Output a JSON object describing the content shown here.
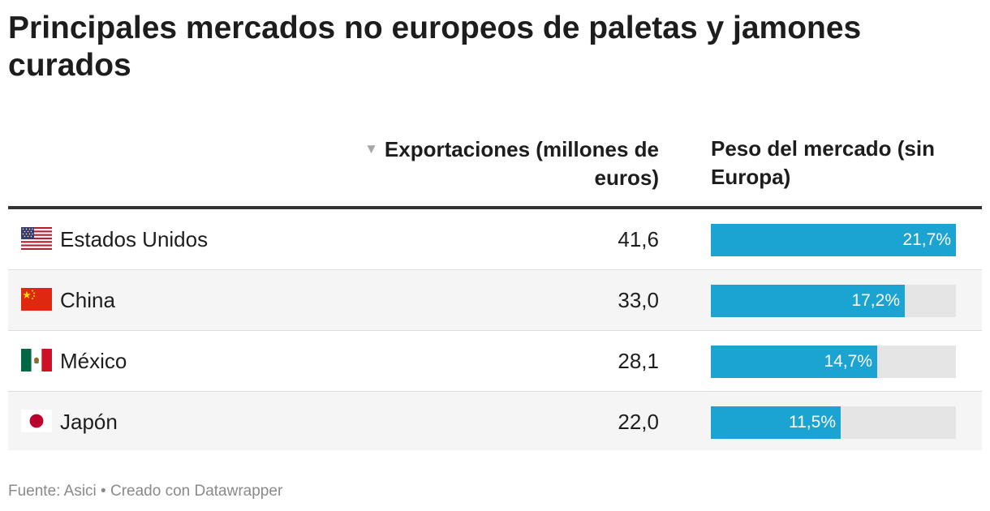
{
  "title": "Principales mercados no europeos de paletas y jamones curados",
  "columns": {
    "sort_icon": "▼",
    "exports": "Exportaciones (millones de euros)",
    "share": "Peso del mercado (sin Europa)"
  },
  "chart_data": {
    "type": "table",
    "title": "Principales mercados no europeos de paletas y jamones curados",
    "columns": [
      "Exportaciones (millones de euros)",
      "Peso del mercado (sin Europa)"
    ],
    "share_max": 21.7,
    "rows": [
      {
        "country": "Estados Unidos",
        "flag": "usa-flag-icon",
        "exports": 41.6,
        "exports_label": "41,6",
        "share": 21.7,
        "share_label": "21,7%"
      },
      {
        "country": "China",
        "flag": "china-flag-icon",
        "exports": 33.0,
        "exports_label": "33,0",
        "share": 17.2,
        "share_label": "17,2%"
      },
      {
        "country": "México",
        "flag": "mexico-flag-icon",
        "exports": 28.1,
        "exports_label": "28,1",
        "share": 14.7,
        "share_label": "14,7%"
      },
      {
        "country": "Japón",
        "flag": "japan-flag-icon",
        "exports": 22.0,
        "exports_label": "22,0",
        "share": 11.5,
        "share_label": "11,5%"
      }
    ]
  },
  "colors": {
    "bar": "#1ba3d1",
    "track": "#e5e5e5"
  },
  "footer": "Fuente: Asici • Creado con Datawrapper"
}
